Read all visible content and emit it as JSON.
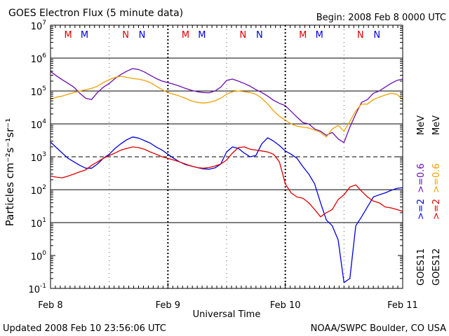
{
  "title": "GOES Electron Flux (5 minute data)",
  "begin_label": "Begin: 2008 Feb 8 0000 UTC",
  "updated_label": "Updated 2008 Feb 10 23:56:06 UTC",
  "credit_label": "NOAA/SWPC Boulder, CO USA",
  "chart_data": {
    "type": "line",
    "xlabel": "Universal Time",
    "ylabel": "Particles cm⁻²s⁻¹sr⁻¹",
    "x_unit": "days from Feb 8 00:00 UTC",
    "xlim": [
      0,
      3
    ],
    "x_ticks": [
      {
        "x": 0,
        "label": "Feb 8"
      },
      {
        "x": 1,
        "label": "Feb 9"
      },
      {
        "x": 2,
        "label": "Feb 10"
      },
      {
        "x": 3,
        "label": "Feb 11"
      }
    ],
    "y_scale": "log",
    "ylim": [
      0.1,
      10000000
    ],
    "y_ticks": [
      {
        "value": 0.1,
        "base": "10",
        "exp": "-1"
      },
      {
        "value": 1,
        "base": "10",
        "exp": "0"
      },
      {
        "value": 10,
        "base": "10",
        "exp": "1"
      },
      {
        "value": 100,
        "base": "10",
        "exp": "2"
      },
      {
        "value": 1000,
        "base": "10",
        "exp": "3"
      },
      {
        "value": 10000,
        "base": "10",
        "exp": "4"
      },
      {
        "value": 100000,
        "base": "10",
        "exp": "5"
      },
      {
        "value": 1000000,
        "base": "10",
        "exp": "6"
      },
      {
        "value": 10000000,
        "base": "10",
        "exp": "7"
      }
    ],
    "grid_major": [
      10,
      100,
      10000,
      100000,
      1000000
    ],
    "grid_dashed": [
      1000
    ],
    "noon_marker_x": [
      0.5,
      1.5,
      2.5
    ],
    "top_markers": [
      {
        "x": 0.15,
        "label": "M",
        "color": "#dd0000"
      },
      {
        "x": 0.29,
        "label": "M",
        "color": "#0000dd"
      },
      {
        "x": 0.64,
        "label": "N",
        "color": "#dd0000"
      },
      {
        "x": 0.78,
        "label": "N",
        "color": "#0000dd"
      },
      {
        "x": 1.15,
        "label": "M",
        "color": "#dd0000"
      },
      {
        "x": 1.29,
        "label": "M",
        "color": "#0000dd"
      },
      {
        "x": 1.64,
        "label": "N",
        "color": "#dd0000"
      },
      {
        "x": 1.78,
        "label": "N",
        "color": "#0000dd"
      },
      {
        "x": 2.15,
        "label": "M",
        "color": "#dd0000"
      },
      {
        "x": 2.29,
        "label": "M",
        "color": "#0000dd"
      },
      {
        "x": 2.64,
        "label": "N",
        "color": "#dd0000"
      },
      {
        "x": 2.78,
        "label": "N",
        "color": "#0000dd"
      }
    ],
    "legend": {
      "goes11_label": "GOES11",
      "goes12_label": "GOES12",
      "unit_label": "MeV",
      "ge2_label": ">=2",
      "ge06_label": ">=0.6",
      "color_goes11_ge2": "#0000dd",
      "color_goes11_ge06": "#6a0dad",
      "color_goes12_ge2": "#dd0000",
      "color_goes12_ge06": "#f0a000"
    },
    "series": [
      {
        "name": "GOES11 >=0.6 MeV",
        "color": "#6a0dad",
        "x": [
          0,
          0.05,
          0.1,
          0.15,
          0.2,
          0.25,
          0.3,
          0.35,
          0.4,
          0.45,
          0.5,
          0.55,
          0.6,
          0.65,
          0.7,
          0.75,
          0.8,
          0.85,
          0.9,
          0.95,
          1.0,
          1.05,
          1.1,
          1.15,
          1.2,
          1.25,
          1.3,
          1.35,
          1.4,
          1.45,
          1.5,
          1.55,
          1.6,
          1.65,
          1.7,
          1.75,
          1.8,
          1.85,
          1.9,
          1.95,
          2.0,
          2.05,
          2.1,
          2.15,
          2.2,
          2.25,
          2.3,
          2.35,
          2.4,
          2.45,
          2.5,
          2.55,
          2.6,
          2.65,
          2.7,
          2.75,
          2.8,
          2.85,
          2.9,
          2.95,
          3.0
        ],
        "values": [
          390000,
          290000,
          220000,
          170000,
          130000,
          85000,
          60000,
          55000,
          90000,
          130000,
          170000,
          240000,
          320000,
          400000,
          480000,
          450000,
          380000,
          300000,
          240000,
          200000,
          180000,
          160000,
          140000,
          120000,
          105000,
          95000,
          90000,
          88000,
          100000,
          130000,
          210000,
          230000,
          200000,
          170000,
          140000,
          110000,
          90000,
          70000,
          52000,
          42000,
          36000,
          24000,
          16000,
          11000,
          10000,
          7000,
          6000,
          4500,
          5500,
          3500,
          2700,
          8000,
          20000,
          45000,
          55000,
          85000,
          100000,
          130000,
          170000,
          210000,
          230000
        ]
      },
      {
        "name": "GOES12 >=0.6 MeV",
        "color": "#f0a000",
        "x": [
          0,
          0.05,
          0.1,
          0.15,
          0.2,
          0.25,
          0.3,
          0.35,
          0.4,
          0.45,
          0.5,
          0.55,
          0.6,
          0.65,
          0.7,
          0.75,
          0.8,
          0.85,
          0.9,
          0.95,
          1.0,
          1.05,
          1.1,
          1.15,
          1.2,
          1.25,
          1.3,
          1.35,
          1.4,
          1.45,
          1.5,
          1.55,
          1.6,
          1.65,
          1.7,
          1.75,
          1.8,
          1.85,
          1.9,
          1.95,
          2.0,
          2.05,
          2.1,
          2.15,
          2.2,
          2.25,
          2.3,
          2.35,
          2.4,
          2.45,
          2.5,
          2.55,
          2.6,
          2.65,
          2.7,
          2.75,
          2.8,
          2.85,
          2.9,
          2.95,
          3.0
        ],
        "values": [
          55000,
          65000,
          70000,
          80000,
          90000,
          100000,
          110000,
          120000,
          140000,
          180000,
          220000,
          260000,
          280000,
          260000,
          240000,
          230000,
          210000,
          180000,
          140000,
          110000,
          90000,
          80000,
          70000,
          60000,
          50000,
          45000,
          43000,
          45000,
          50000,
          60000,
          80000,
          95000,
          100000,
          95000,
          90000,
          80000,
          60000,
          40000,
          25000,
          17000,
          13000,
          10000,
          8500,
          8000,
          7500,
          6500,
          5500,
          4000,
          7000,
          9000,
          6000,
          12000,
          25000,
          40000,
          40000,
          55000,
          65000,
          75000,
          85000,
          80000,
          55000
        ]
      },
      {
        "name": "GOES11 >=2 MeV",
        "color": "#0000dd",
        "x": [
          0,
          0.05,
          0.1,
          0.15,
          0.2,
          0.25,
          0.3,
          0.35,
          0.4,
          0.45,
          0.5,
          0.55,
          0.6,
          0.65,
          0.7,
          0.75,
          0.8,
          0.85,
          0.9,
          0.95,
          1.0,
          1.05,
          1.1,
          1.15,
          1.2,
          1.25,
          1.3,
          1.35,
          1.4,
          1.45,
          1.5,
          1.55,
          1.6,
          1.65,
          1.7,
          1.75,
          1.8,
          1.85,
          1.9,
          1.95,
          2.0,
          2.05,
          2.1,
          2.15,
          2.2,
          2.25,
          2.3,
          2.35,
          2.4,
          2.45,
          2.5,
          2.55,
          2.6,
          2.65,
          2.7,
          2.75,
          2.8,
          2.85,
          2.9,
          2.95,
          3.0
        ],
        "values": [
          2800,
          1900,
          1300,
          900,
          700,
          550,
          450,
          450,
          600,
          900,
          1200,
          1800,
          2500,
          3300,
          4000,
          3700,
          3100,
          2600,
          2000,
          1600,
          1200,
          900,
          700,
          580,
          520,
          470,
          430,
          420,
          460,
          600,
          1400,
          2000,
          1800,
          1300,
          1000,
          1100,
          2500,
          3800,
          3000,
          2200,
          1500,
          1200,
          900,
          500,
          300,
          150,
          40,
          12,
          8,
          3,
          0.15,
          0.2,
          8,
          15,
          30,
          60,
          70,
          80,
          95,
          110,
          115
        ]
      },
      {
        "name": "GOES12 >=2 MeV",
        "color": "#dd0000",
        "x": [
          0,
          0.05,
          0.1,
          0.15,
          0.2,
          0.25,
          0.3,
          0.35,
          0.4,
          0.45,
          0.5,
          0.55,
          0.6,
          0.65,
          0.7,
          0.75,
          0.8,
          0.85,
          0.9,
          0.95,
          1.0,
          1.05,
          1.1,
          1.15,
          1.2,
          1.25,
          1.3,
          1.35,
          1.4,
          1.45,
          1.5,
          1.55,
          1.6,
          1.65,
          1.7,
          1.75,
          1.8,
          1.85,
          1.9,
          1.95,
          2.0,
          2.05,
          2.1,
          2.15,
          2.2,
          2.25,
          2.3,
          2.35,
          2.4,
          2.45,
          2.5,
          2.55,
          2.6,
          2.65,
          2.7,
          2.75,
          2.8,
          2.85,
          2.9,
          2.95,
          3.0
        ],
        "values": [
          260,
          240,
          230,
          260,
          300,
          350,
          400,
          550,
          700,
          900,
          1100,
          1300,
          1600,
          1800,
          2000,
          1900,
          1700,
          1400,
          1200,
          1000,
          900,
          800,
          700,
          600,
          520,
          470,
          450,
          470,
          520,
          600,
          800,
          1300,
          1900,
          2000,
          1700,
          1600,
          1500,
          1400,
          1200,
          700,
          150,
          80,
          60,
          55,
          40,
          25,
          15,
          20,
          25,
          50,
          70,
          120,
          140,
          90,
          60,
          45,
          40,
          30,
          28,
          25,
          22
        ]
      }
    ]
  }
}
